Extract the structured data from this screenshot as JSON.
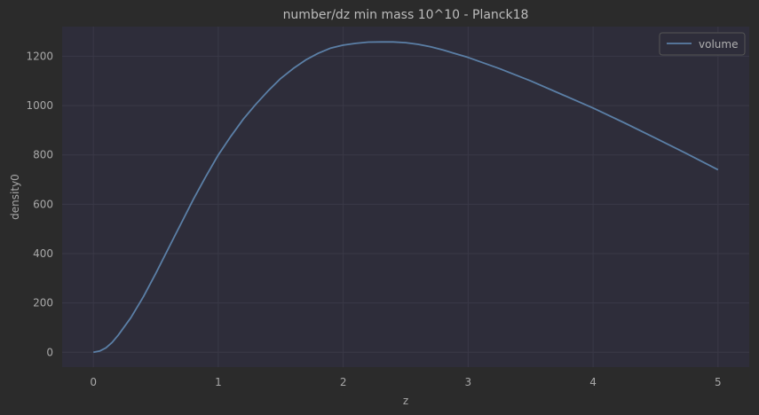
{
  "colors": {
    "page_background": "#2b2b2b",
    "plot_background": "#2e2d3a",
    "grid": "#3a3947",
    "line": "#5b7fa6",
    "text": "#a8a8a8",
    "legend_border": "#555555"
  },
  "chart_data": {
    "type": "line",
    "title": "number/dz min mass 10^10 - Planck18",
    "xlabel": "z",
    "ylabel": "density0",
    "xlim": [
      -0.25,
      5.25
    ],
    "ylim": [
      -60,
      1320
    ],
    "xticks": [
      0,
      1,
      2,
      3,
      4,
      5
    ],
    "yticks": [
      0,
      200,
      400,
      600,
      800,
      1000,
      1200
    ],
    "grid": true,
    "legend_position": "top-right",
    "series": [
      {
        "name": "volume",
        "x": [
          0.0,
          0.05,
          0.1,
          0.15,
          0.2,
          0.3,
          0.4,
          0.5,
          0.6,
          0.7,
          0.8,
          0.9,
          1.0,
          1.1,
          1.2,
          1.3,
          1.4,
          1.5,
          1.6,
          1.7,
          1.8,
          1.9,
          2.0,
          2.1,
          2.2,
          2.3,
          2.4,
          2.5,
          2.6,
          2.7,
          2.8,
          2.9,
          3.0,
          3.25,
          3.5,
          3.75,
          4.0,
          4.25,
          4.5,
          4.75,
          5.0
        ],
        "y": [
          0,
          5,
          18,
          40,
          70,
          140,
          225,
          320,
          420,
          520,
          620,
          712,
          800,
          875,
          945,
          1005,
          1060,
          1110,
          1150,
          1185,
          1212,
          1233,
          1245,
          1252,
          1257,
          1258,
          1258,
          1255,
          1248,
          1238,
          1225,
          1210,
          1195,
          1150,
          1100,
          1045,
          990,
          930,
          868,
          805,
          740
        ]
      }
    ]
  }
}
